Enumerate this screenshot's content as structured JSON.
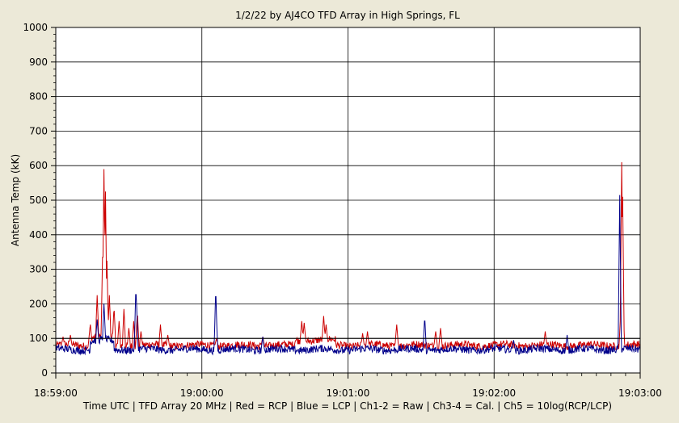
{
  "chart_data": {
    "type": "line",
    "title": "1/2/22  by  AJ4CO TFD Array  in  High Springs, FL",
    "ylabel": "Antenna Temp (kK)",
    "xlabel": "Time UTC | TFD Array 20 MHz | Red = RCP | Blue = LCP | Ch1-2 = Raw | Ch3-4 = Cal. | Ch5 = 10log(RCP/LCP)",
    "ylim": [
      0,
      1000
    ],
    "yticks": [
      0,
      100,
      200,
      300,
      400,
      500,
      600,
      700,
      800,
      900,
      1000
    ],
    "xlim_seconds_after_18_59_00": [
      0,
      240
    ],
    "xtick_labels": [
      "18:59:00",
      "19:00:00",
      "19:01:00",
      "19:02:00",
      "19:03:00"
    ],
    "reference_line_value": 100,
    "grid": true,
    "series": [
      {
        "name": "Red = RCP",
        "color": "#cc0000",
        "baseline": 80,
        "spikes": [
          {
            "t": 3,
            "v": 105
          },
          {
            "t": 6,
            "v": 110
          },
          {
            "t": 14,
            "v": 130
          },
          {
            "t": 17,
            "v": 200
          },
          {
            "t": 19.3,
            "v": 350
          },
          {
            "t": 19.8,
            "v": 565
          },
          {
            "t": 20.4,
            "v": 500
          },
          {
            "t": 21,
            "v": 300
          },
          {
            "t": 22,
            "v": 200
          },
          {
            "t": 24,
            "v": 180
          },
          {
            "t": 26,
            "v": 150
          },
          {
            "t": 28,
            "v": 185
          },
          {
            "t": 30,
            "v": 130
          },
          {
            "t": 32,
            "v": 150
          },
          {
            "t": 33.5,
            "v": 180
          },
          {
            "t": 35,
            "v": 120
          },
          {
            "t": 43,
            "v": 140
          },
          {
            "t": 46,
            "v": 110
          },
          {
            "t": 66,
            "v": 100
          },
          {
            "t": 85,
            "v": 105
          },
          {
            "t": 101,
            "v": 135
          },
          {
            "t": 102,
            "v": 130
          },
          {
            "t": 110,
            "v": 150
          },
          {
            "t": 111,
            "v": 125
          },
          {
            "t": 126,
            "v": 115
          },
          {
            "t": 128,
            "v": 120
          },
          {
            "t": 140,
            "v": 140
          },
          {
            "t": 156,
            "v": 120
          },
          {
            "t": 158,
            "v": 130
          },
          {
            "t": 201,
            "v": 120
          },
          {
            "t": 232,
            "v": 180
          },
          {
            "t": 232.4,
            "v": 610
          },
          {
            "t": 232.8,
            "v": 510
          }
        ]
      },
      {
        "name": "Blue = LCP",
        "color": "#00008b",
        "baseline": 68,
        "spikes": [
          {
            "t": 17,
            "v": 130
          },
          {
            "t": 19.8,
            "v": 175
          },
          {
            "t": 32.9,
            "v": 255
          },
          {
            "t": 33.2,
            "v": 195
          },
          {
            "t": 65.7,
            "v": 248
          },
          {
            "t": 65.9,
            "v": 170
          },
          {
            "t": 85,
            "v": 105
          },
          {
            "t": 151.5,
            "v": 165
          },
          {
            "t": 188,
            "v": 95
          },
          {
            "t": 210,
            "v": 110
          },
          {
            "t": 231.6,
            "v": 515
          }
        ]
      }
    ]
  }
}
